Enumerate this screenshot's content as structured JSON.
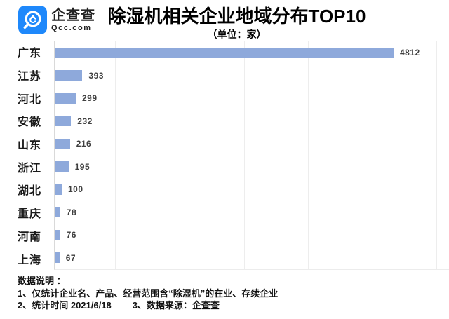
{
  "brand": {
    "name": "企查查",
    "domain": "Qcc.com",
    "logo_color": "#1E88FB"
  },
  "header": {
    "title": "除湿机相关企业地域分布TOP10",
    "subtitle": "（单位：家）"
  },
  "chart_data": {
    "type": "bar",
    "orientation": "horizontal",
    "title": "除湿机相关企业地域分布TOP10",
    "subtitle": "（单位：家）",
    "unit": "家",
    "categories": [
      "广东",
      "江苏",
      "河北",
      "安徽",
      "山东",
      "浙江",
      "湖北",
      "重庆",
      "河南",
      "上海"
    ],
    "values": [
      4812,
      393,
      299,
      232,
      216,
      195,
      100,
      78,
      76,
      67
    ],
    "xlim": [
      0,
      5000
    ],
    "grid": true,
    "legend": false,
    "value_labels": true,
    "bar_color": "#8EA9DB",
    "axis_line_color": "#d9d9d9",
    "gridline_color": "#ededed"
  },
  "footer": {
    "heading": "数据说明 ：",
    "note1": "1、仅统计企业名、产品、经营范围含“除湿机”的在业、存续企业",
    "note2": "2、统计时间 2021/6/18",
    "note3": "3、数据来源：企查查"
  }
}
